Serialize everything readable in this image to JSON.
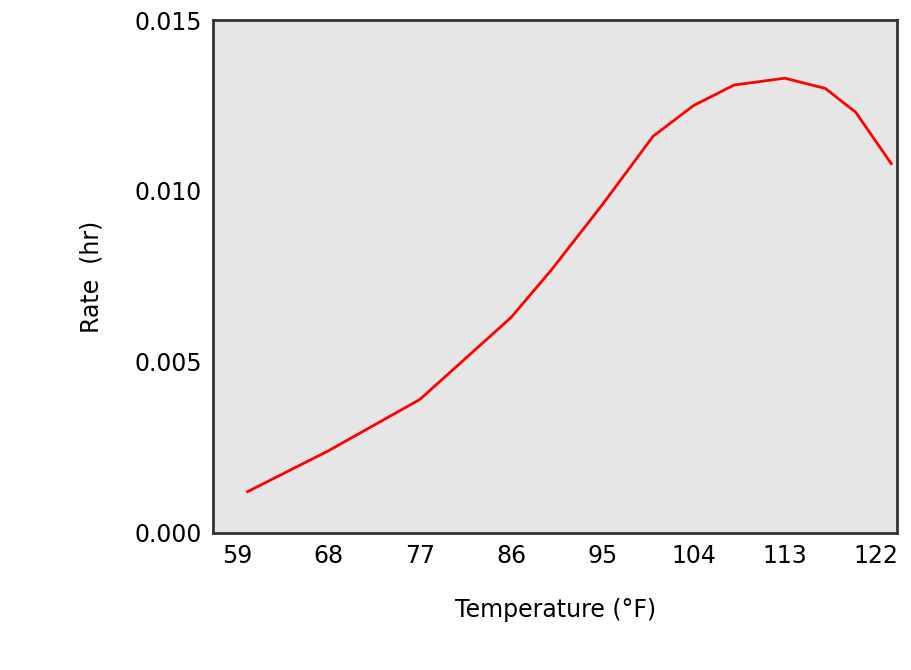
{
  "chart_data": {
    "type": "line",
    "x_label": "Temperature (°F)",
    "y_label": "Rate  (hr)",
    "x": [
      60,
      68,
      77,
      86,
      90,
      95,
      100,
      104,
      108,
      113,
      117,
      120,
      123.5
    ],
    "values": [
      0.0012,
      0.0024,
      0.0039,
      0.0063,
      0.0077,
      0.0096,
      0.0116,
      0.0125,
      0.0131,
      0.0133,
      0.013,
      0.0123,
      0.0108
    ],
    "color": "#ff0000",
    "xlim": [
      56.6,
      124.1
    ],
    "xticks": [
      59,
      68,
      77,
      86,
      95,
      104,
      113,
      122
    ],
    "ylim": [
      0,
      0.015
    ],
    "yticks": [
      {
        "value": 0,
        "label": "0.000"
      },
      {
        "value": 0.005,
        "label": "0.005"
      },
      {
        "value": 0.01,
        "label": "0.010"
      },
      {
        "value": 0.015,
        "label": "0.015"
      }
    ],
    "grid": false
  }
}
